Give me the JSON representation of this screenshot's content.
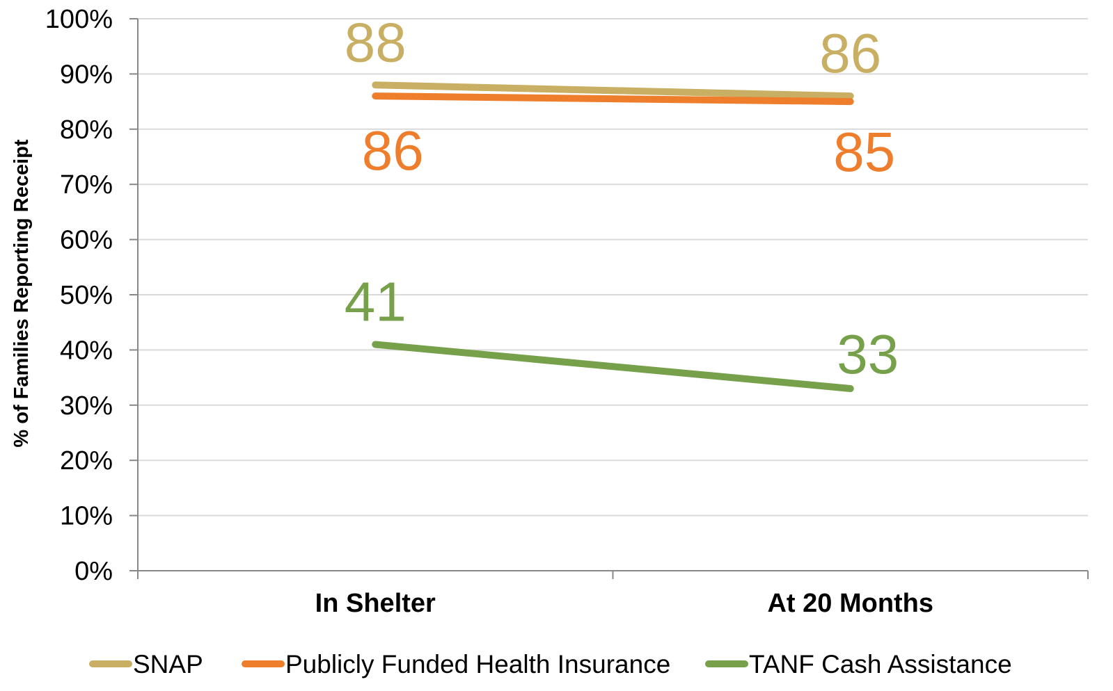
{
  "chart_data": {
    "type": "line",
    "title": "",
    "xlabel": "",
    "ylabel": "% of Families Reporting Receipt",
    "categories": [
      "In Shelter",
      "At 20 Months"
    ],
    "ylim": [
      0,
      100
    ],
    "yticks": [
      "0%",
      "10%",
      "20%",
      "30%",
      "40%",
      "50%",
      "60%",
      "70%",
      "80%",
      "90%",
      "100%"
    ],
    "grid": true,
    "legend_position": "bottom",
    "series": [
      {
        "name": "SNAP",
        "values": [
          88,
          86
        ],
        "labels": [
          "88",
          "86"
        ],
        "color": "#C9AF63"
      },
      {
        "name": "Publicly Funded Health Insurance",
        "values": [
          86,
          85
        ],
        "labels": [
          "86",
          "85"
        ],
        "color": "#EE7D2C"
      },
      {
        "name": "TANF Cash Assistance",
        "values": [
          41,
          33
        ],
        "labels": [
          "41",
          "33"
        ],
        "color": "#76A04A"
      }
    ]
  }
}
